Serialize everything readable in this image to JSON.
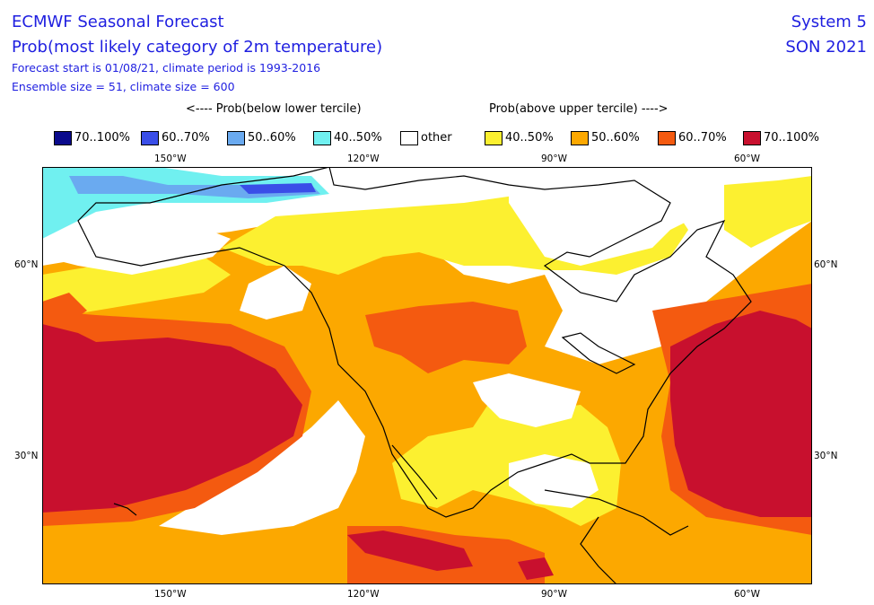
{
  "header": {
    "title": "ECMWF Seasonal Forecast",
    "subtitle": "Prob(most likely category of 2m temperature)",
    "forecast_line": "Forecast start is 01/08/21, climate period is 1993-2016",
    "ensemble_line": "Ensemble size = 51, climate size = 600",
    "system": "System 5",
    "season": "SON 2021"
  },
  "captions": {
    "below": "<---- Prob(below lower tercile)",
    "above": "Prob(above upper tercile) ---->"
  },
  "legend": [
    {
      "label": "70..100%",
      "color": "#0a0a8c"
    },
    {
      "label": "60..70%",
      "color": "#3a4ee8"
    },
    {
      "label": "50..60%",
      "color": "#6aaaf0"
    },
    {
      "label": "40..50%",
      "color": "#70f0f0"
    },
    {
      "label": "other",
      "color": "#ffffff"
    },
    {
      "label": "40..50%",
      "color": "#fcf030"
    },
    {
      "label": "50..60%",
      "color": "#fca800"
    },
    {
      "label": "60..70%",
      "color": "#f45a10"
    },
    {
      "label": "70..100%",
      "color": "#c8102e"
    }
  ],
  "axes": {
    "top_lon": [
      "150°W",
      "120°W",
      "90°W",
      "60°W"
    ],
    "bottom_lon": [
      "150°W",
      "120°W",
      "90°W",
      "60°W"
    ],
    "left_lat": [
      "60°N",
      "30°N"
    ],
    "right_lat": [
      "60°N",
      "30°N"
    ]
  },
  "colors": {
    "text_blue": "#1f1fe0",
    "coast": "#000000"
  }
}
